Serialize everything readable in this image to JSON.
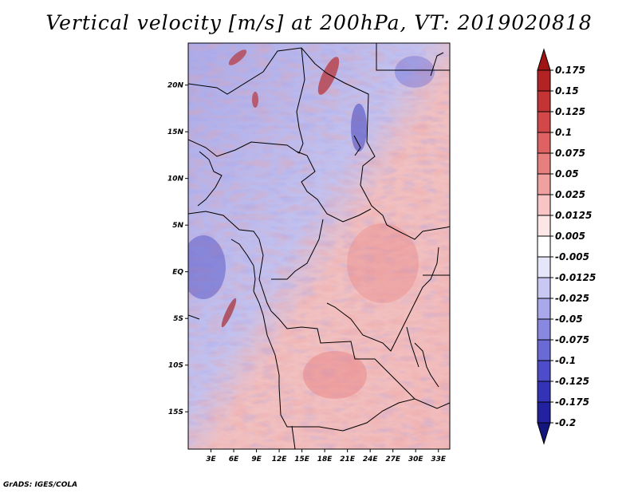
{
  "title": "Vertical velocity [m/s] at 200hPa, VT: 2019020818",
  "credit": "GrADS: IGES/COLA",
  "chart_data": {
    "type": "heatmap",
    "variable": "Vertical velocity",
    "units": "m/s",
    "level": "200hPa",
    "valid_time": "2019020818",
    "lat_range": [
      -19,
      24.5
    ],
    "lon_range": [
      0,
      34.5
    ],
    "lat_ticks": [
      {
        "value": 20,
        "label": "20N"
      },
      {
        "value": 15,
        "label": "15N"
      },
      {
        "value": 10,
        "label": "10N"
      },
      {
        "value": 5,
        "label": "5N"
      },
      {
        "value": 0,
        "label": "EQ"
      },
      {
        "value": -5,
        "label": "5S"
      },
      {
        "value": -10,
        "label": "10S"
      },
      {
        "value": -15,
        "label": "15S"
      }
    ],
    "lon_ticks": [
      {
        "value": 3,
        "label": "3E"
      },
      {
        "value": 6,
        "label": "6E"
      },
      {
        "value": 9,
        "label": "9E"
      },
      {
        "value": 12,
        "label": "12E"
      },
      {
        "value": 15,
        "label": "15E"
      },
      {
        "value": 18,
        "label": "18E"
      },
      {
        "value": 21,
        "label": "21E"
      },
      {
        "value": 24,
        "label": "24E"
      },
      {
        "value": 27,
        "label": "27E"
      },
      {
        "value": 30,
        "label": "30E"
      },
      {
        "value": 33,
        "label": "33E"
      }
    ],
    "colorbar": {
      "levels": [
        "0.175",
        "0.15",
        "0.125",
        "0.1",
        "0.075",
        "0.05",
        "0.025",
        "0.0125",
        "0.005",
        "-0.005",
        "-0.0125",
        "-0.025",
        "-0.05",
        "-0.075",
        "-0.1",
        "-0.125",
        "-0.175",
        "-0.2"
      ],
      "colors": [
        "#a01414",
        "#b42323",
        "#c53434",
        "#d24848",
        "#de6262",
        "#e87f7f",
        "#f1a0a0",
        "#f8c4c4",
        "#fde6e6",
        "#ffffff",
        "#e6e6fb",
        "#c8c8f3",
        "#a8a8ea",
        "#8888e0",
        "#6a6ad6",
        "#4d4dc9",
        "#3333b8",
        "#2222a0",
        "#15157e"
      ]
    }
  }
}
